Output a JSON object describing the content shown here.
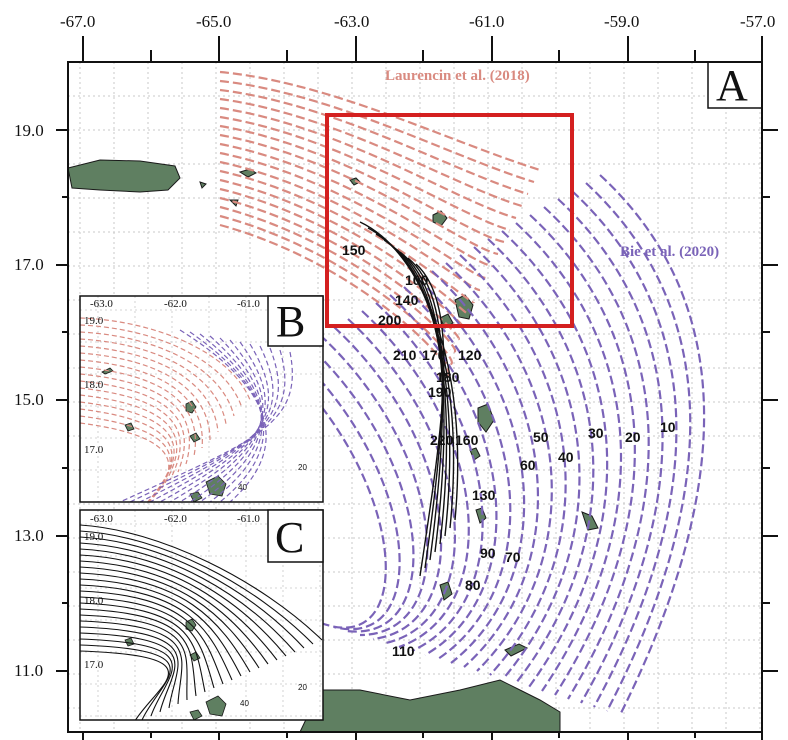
{
  "main_map": {
    "panel_label": "A",
    "lon_ticks": [
      "-67.0",
      "-65.0",
      "-63.0",
      "-61.0",
      "-59.0",
      "-57.0"
    ],
    "lat_ticks": [
      "19.0",
      "17.0",
      "15.0",
      "13.0",
      "11.0"
    ],
    "source_laurencin": "Laurencin et al. (2018)",
    "source_bie": "Bie et al. (2020)",
    "contour_labels_bie": [
      "10",
      "20",
      "30",
      "40",
      "50",
      "60",
      "70",
      "80",
      "90",
      "100",
      "110",
      "120",
      "130",
      "140",
      "150",
      "160",
      "170",
      "180",
      "190",
      "200",
      "210",
      "220"
    ],
    "highlight_box_color": "#d42020"
  },
  "inset_b": {
    "panel_label": "B",
    "lon_ticks": [
      "-63.0",
      "-62.0",
      "-61.0"
    ],
    "lat_ticks": [
      "19.0",
      "18.0",
      "17.0"
    ],
    "contour_labels": [
      "20",
      "40"
    ]
  },
  "inset_c": {
    "panel_label": "C",
    "lon_ticks": [
      "-63.0",
      "-62.0",
      "-61.0"
    ],
    "lat_ticks": [
      "19.0",
      "18.0",
      "17.0"
    ],
    "contour_labels": [
      "20",
      "40"
    ]
  },
  "colors": {
    "laurencin": "#d98a80",
    "bie": "#7a63b8",
    "land": "#5f7f61",
    "frame": "#111111",
    "grid": "#c8c8c8"
  }
}
